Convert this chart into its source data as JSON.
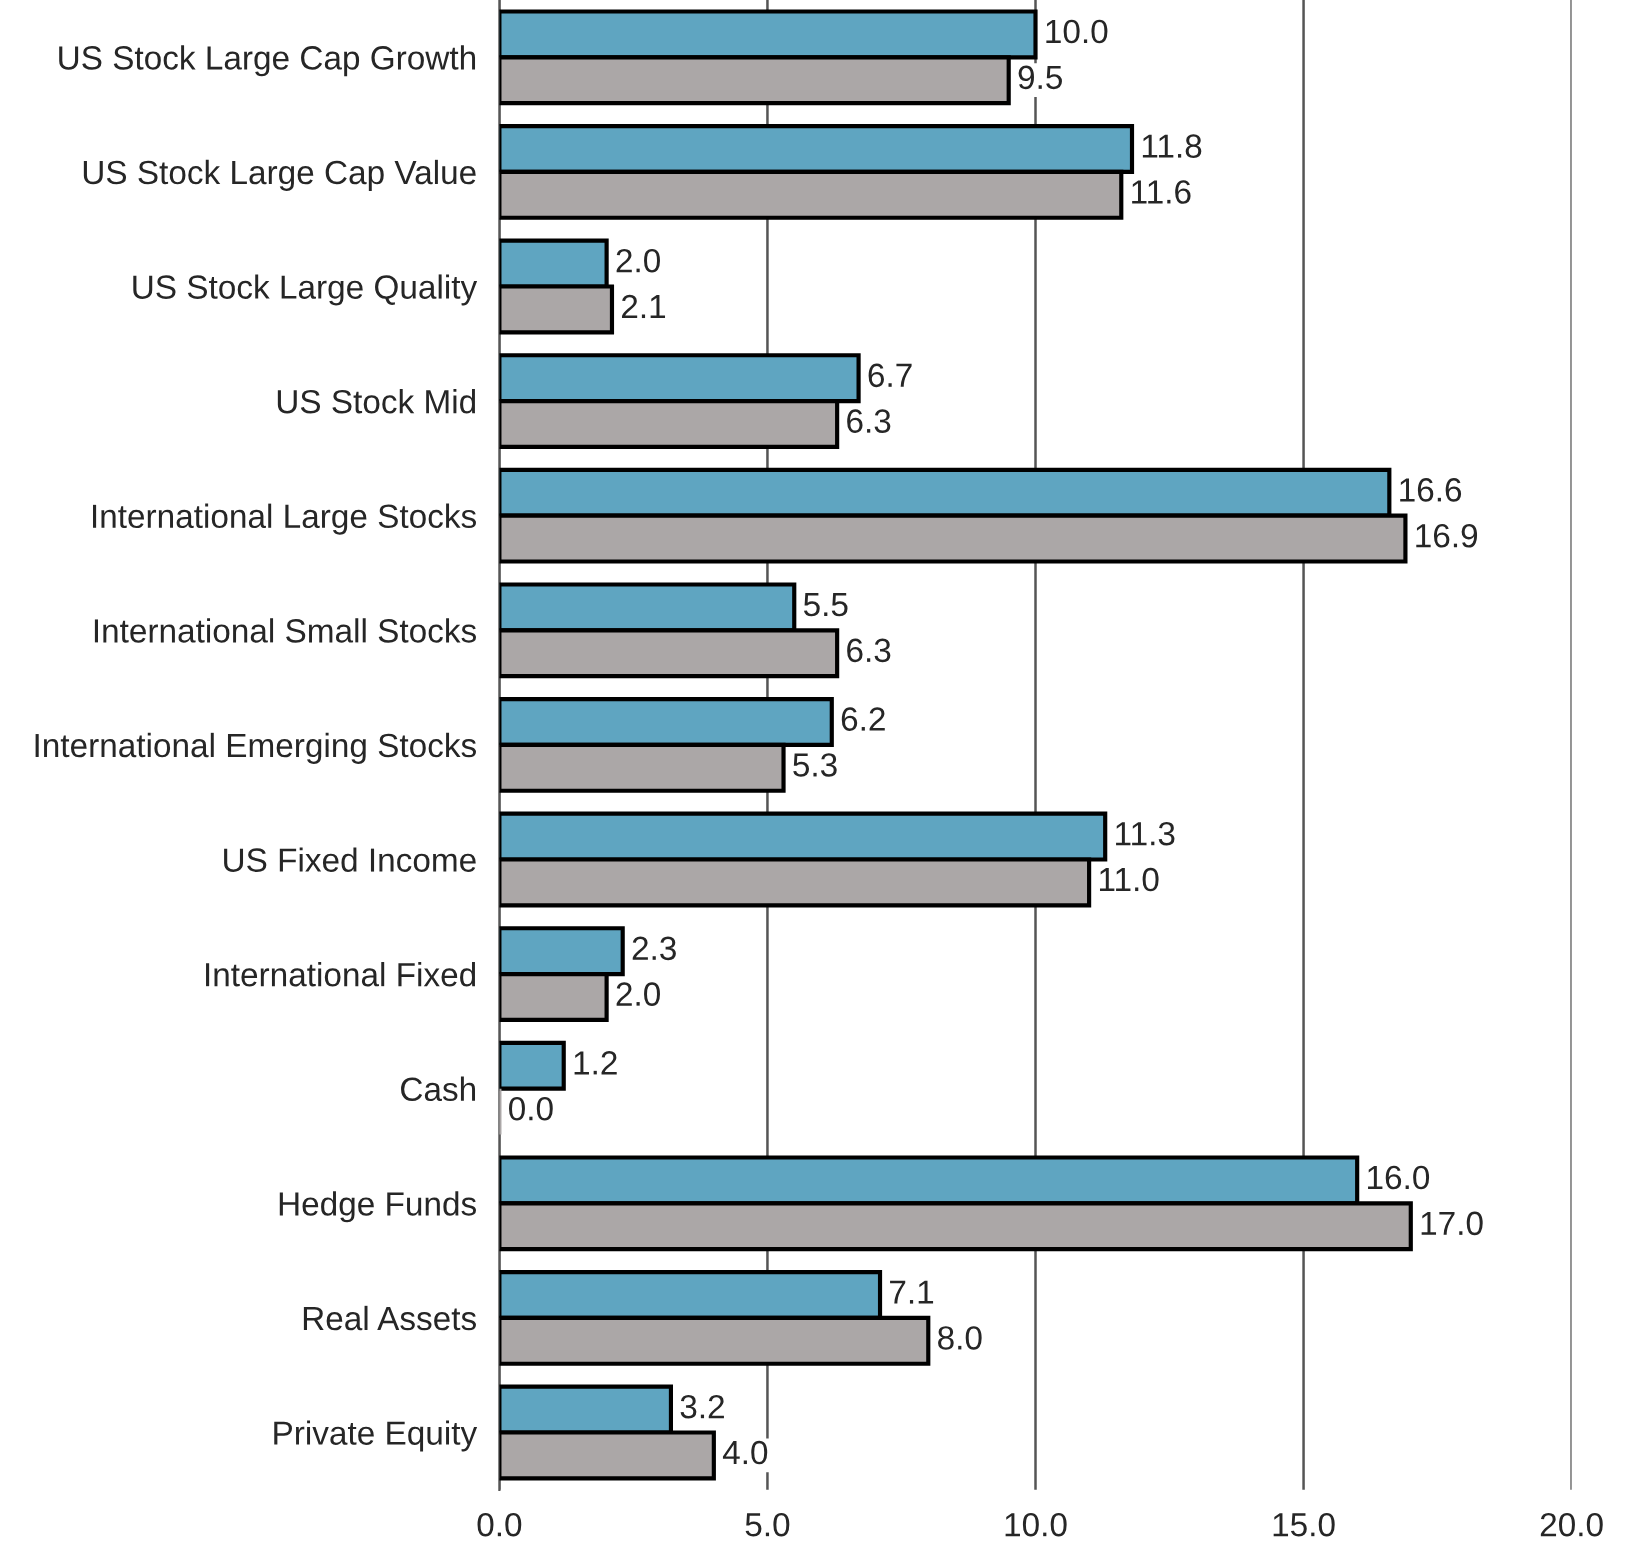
{
  "chart_data": {
    "type": "bar",
    "orientation": "horizontal",
    "categories": [
      "US Stock Large Cap Growth",
      "US Stock Large Cap Value",
      "US Stock Large Quality",
      "US Stock Mid",
      "International Large Stocks",
      "International Small Stocks",
      "International Emerging Stocks",
      "US Fixed Income",
      "International Fixed",
      "Cash",
      "Hedge Funds",
      "Real Assets",
      "Private Equity"
    ],
    "series": [
      {
        "color": "#5fa5c1",
        "values": [
          10.0,
          11.8,
          2.0,
          6.7,
          16.6,
          5.5,
          6.2,
          11.3,
          2.3,
          1.2,
          16.0,
          7.1,
          3.2
        ],
        "value_labels": [
          "10.0",
          "11.8",
          "2.0",
          "6.7",
          "16.6",
          "5.5",
          "6.2",
          "11.3",
          "2.3",
          "1.2",
          "16.0",
          "7.1",
          "3.2"
        ]
      },
      {
        "color": "#aba7a7",
        "values": [
          9.5,
          11.6,
          2.1,
          6.3,
          16.9,
          6.3,
          5.3,
          11.0,
          2.0,
          0.0,
          17.0,
          8.0,
          4.0
        ],
        "value_labels": [
          "9.5",
          "11.6",
          "2.1",
          "6.3",
          "16.9",
          "6.3",
          "5.3",
          "11.0",
          "2.0",
          "0.0",
          "17.0",
          "8.0",
          "4.0"
        ]
      }
    ],
    "xlim": [
      0,
      20
    ],
    "xticks": [
      {
        "value": 0,
        "label": "0.0"
      },
      {
        "value": 5,
        "label": "5.0"
      },
      {
        "value": 10,
        "label": "10.0"
      },
      {
        "value": 15,
        "label": "15.0"
      },
      {
        "value": 20,
        "label": "20.0"
      }
    ],
    "grid": "x",
    "legend": false
  }
}
